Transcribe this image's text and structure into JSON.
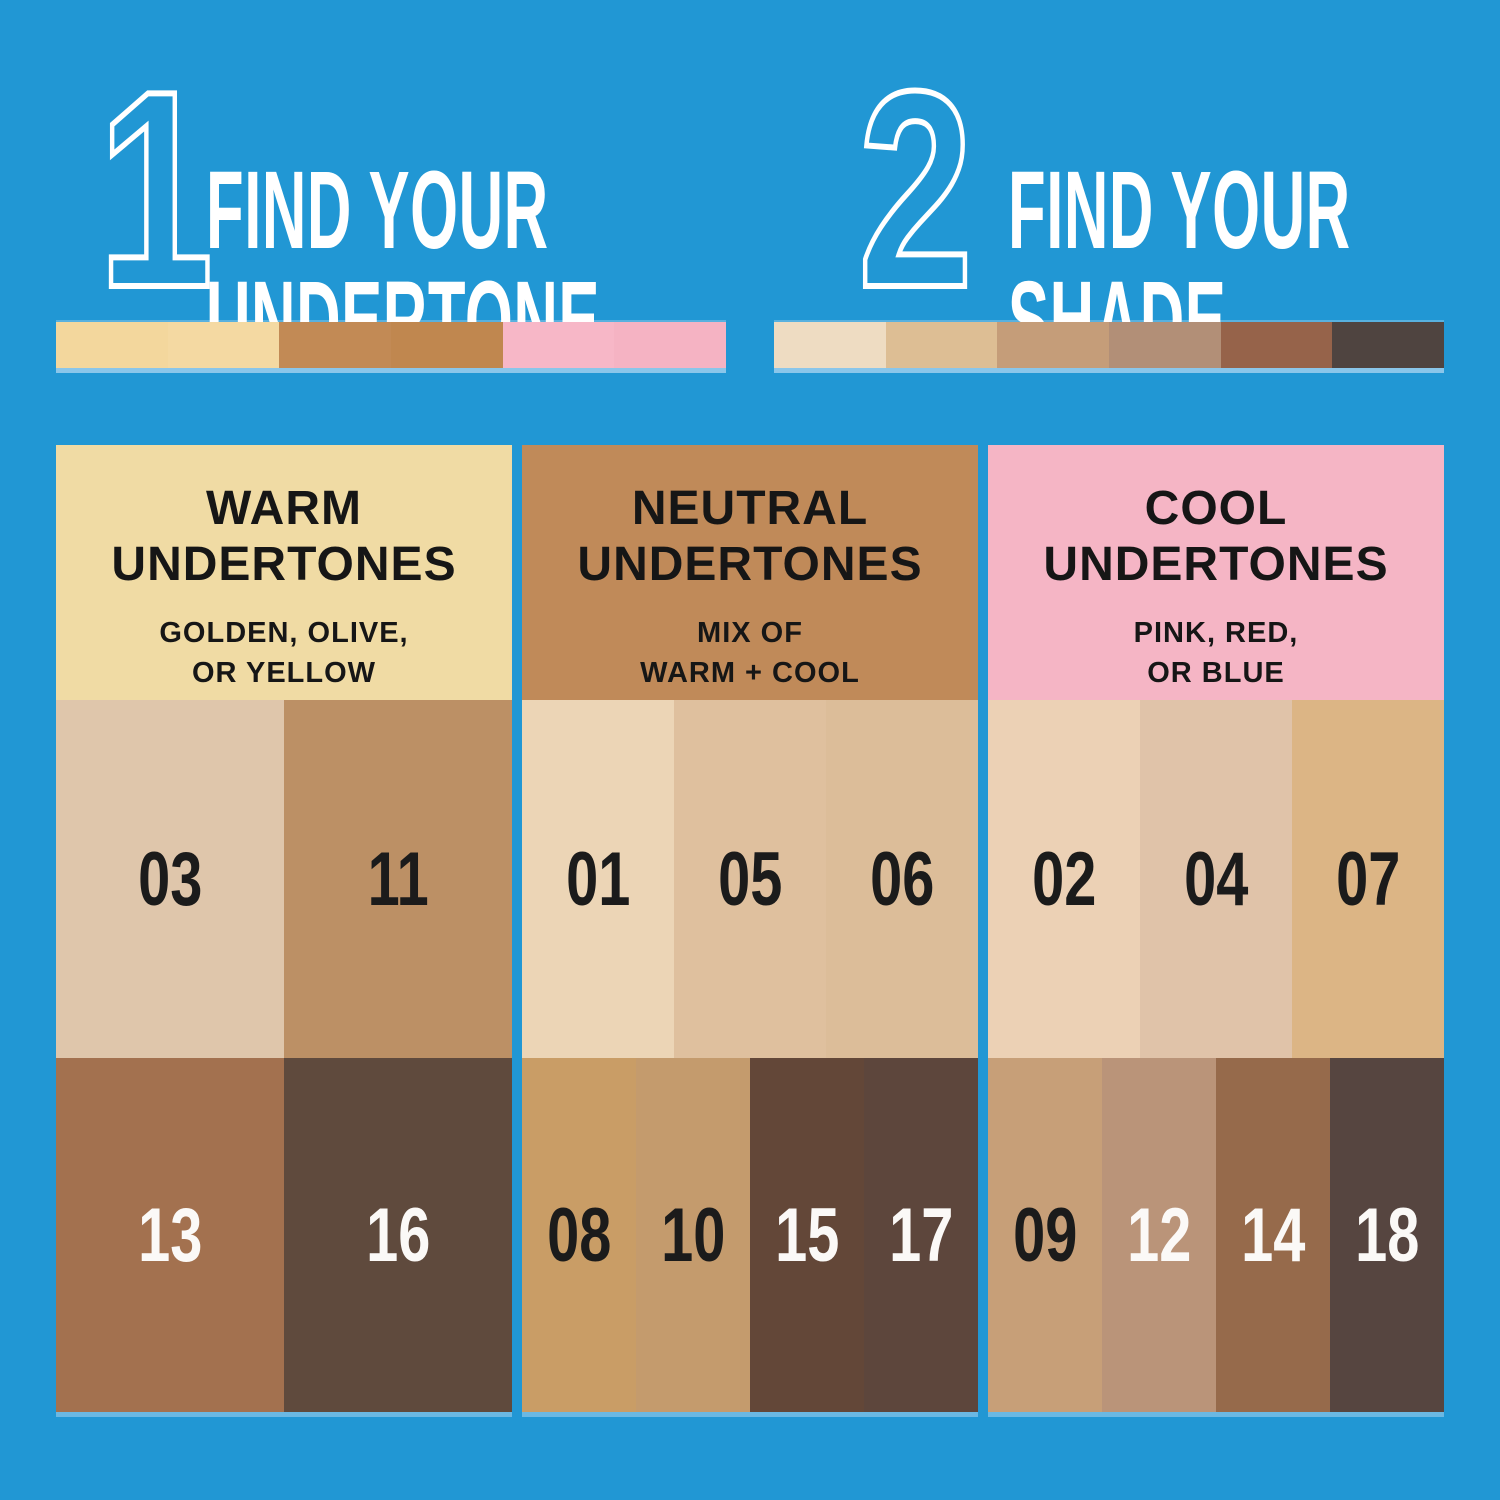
{
  "canvas": {
    "background": "#2197d4"
  },
  "steps": [
    {
      "number": "1",
      "title": [
        "FIND YOUR",
        "UNDERTONE"
      ],
      "strip_swatches": [
        "#f3d79d",
        "#f4d9a2",
        "#c28a55",
        "#c0874f",
        "#f7b7c7",
        "#f5b3c3"
      ]
    },
    {
      "number": "2",
      "title": [
        "FIND YOUR",
        "SHADE"
      ],
      "strip_swatches": [
        "#eedcc2",
        "#ddbe94",
        "#c59d79",
        "#b28f77",
        "#96634a",
        "#4f4440"
      ]
    }
  ],
  "columns": [
    {
      "name": "warm",
      "header": {
        "bg": "#f0dba4",
        "title": [
          "WARM",
          "UNDERTONES"
        ],
        "subtitle": [
          "GOLDEN, OLIVE,",
          "OR YELLOW"
        ]
      },
      "light_shades": [
        {
          "label": "03",
          "color": "#dfc6ab",
          "label_color": "#1b1b1b"
        },
        {
          "label": "11",
          "color": "#bc9065",
          "label_color": "#1b1b1b"
        }
      ],
      "deep_shades": [
        {
          "label": "13",
          "color": "#a3714f",
          "label_color": "#fbf9f7"
        },
        {
          "label": "16",
          "color": "#5f4a3d",
          "label_color": "#fbf9f7"
        }
      ]
    },
    {
      "name": "neutral",
      "header": {
        "bg": "#c08a59",
        "title": [
          "NEUTRAL",
          "UNDERTONES"
        ],
        "subtitle": [
          "MIX OF",
          "WARM + COOL"
        ]
      },
      "light_shades": [
        {
          "label": "01",
          "color": "#ecd5b6",
          "label_color": "#1b1b1b"
        },
        {
          "label": "05",
          "color": "#dfc09e",
          "label_color": "#1b1b1b"
        },
        {
          "label": "06",
          "color": "#dcbd99",
          "label_color": "#1b1b1b"
        }
      ],
      "deep_shades": [
        {
          "label": "08",
          "color": "#c99d66",
          "label_color": "#1b1b1b"
        },
        {
          "label": "10",
          "color": "#c49b6d",
          "label_color": "#1b1b1b"
        },
        {
          "label": "15",
          "color": "#634738",
          "label_color": "#fbf9f7"
        },
        {
          "label": "17",
          "color": "#5d463c",
          "label_color": "#fbf9f7"
        }
      ]
    },
    {
      "name": "cool",
      "header": {
        "bg": "#f5b5c5",
        "title": [
          "COOL",
          "UNDERTONES"
        ],
        "subtitle": [
          "PINK, RED,",
          "OR BLUE"
        ]
      },
      "light_shades": [
        {
          "label": "02",
          "color": "#ecd1b5",
          "label_color": "#1b1b1b"
        },
        {
          "label": "04",
          "color": "#e0c3a9",
          "label_color": "#1b1b1b"
        },
        {
          "label": "07",
          "color": "#dcb585",
          "label_color": "#1b1b1b"
        }
      ],
      "deep_shades": [
        {
          "label": "09",
          "color": "#c79f78",
          "label_color": "#1b1b1b"
        },
        {
          "label": "12",
          "color": "#ba9479",
          "label_color": "#fbf9f7"
        },
        {
          "label": "14",
          "color": "#966a4b",
          "label_color": "#fbf9f7"
        },
        {
          "label": "18",
          "color": "#564540",
          "label_color": "#fbf9f7"
        }
      ]
    }
  ]
}
